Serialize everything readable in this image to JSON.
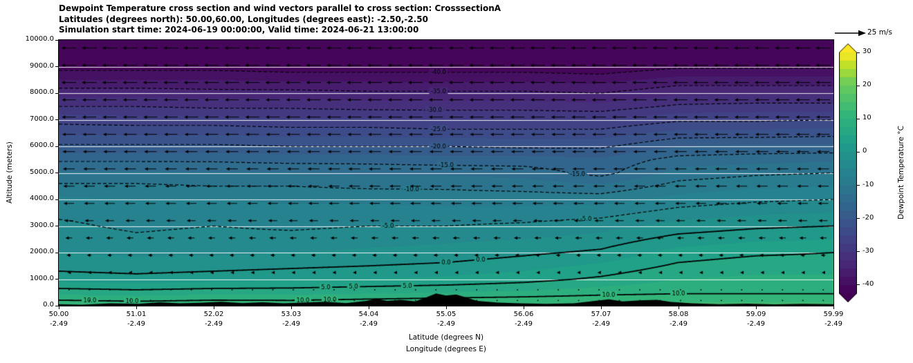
{
  "header": {
    "title_line1": "Dewpoint Temperature cross section and wind vectors parallel to cross section: CrosssectionA",
    "title_line2": "Latitudes (degrees north): 50.00,60.00, Longitudes (degrees east): -2.50,-2.50",
    "title_line3": "Simulation start time: 2024-06-19 00:00:00, Valid time: 2024-06-21 13:00:00"
  },
  "axes": {
    "y_label": "Altitude (meters)",
    "y_ticks": [
      "0.0",
      "1000.0",
      "2000.0",
      "3000.0",
      "4000.0",
      "5000.0",
      "6000.0",
      "7000.0",
      "8000.0",
      "9000.0",
      "10000.0"
    ],
    "x_label_line1": "Latitude (degrees N)",
    "x_label_line2": "Longitude (degrees E)",
    "x_ticks": [
      {
        "lat": "50.00",
        "lon": "-2.49"
      },
      {
        "lat": "51.01",
        "lon": "-2.49"
      },
      {
        "lat": "52.02",
        "lon": "-2.49"
      },
      {
        "lat": "53.03",
        "lon": "-2.49"
      },
      {
        "lat": "54.04",
        "lon": "-2.49"
      },
      {
        "lat": "55.05",
        "lon": "-2.49"
      },
      {
        "lat": "56.06",
        "lon": "-2.49"
      },
      {
        "lat": "57.07",
        "lon": "-2.49"
      },
      {
        "lat": "58.08",
        "lon": "-2.49"
      },
      {
        "lat": "59.09",
        "lon": "-2.49"
      },
      {
        "lat": "59.99",
        "lon": "-2.49"
      }
    ]
  },
  "colorbar": {
    "label": "Dewpoint Temperature °C",
    "ticks": [
      "30",
      "20",
      "10",
      "0",
      "-10",
      "-20",
      "-30",
      "-40"
    ],
    "tick_values": [
      30,
      20,
      10,
      0,
      -10,
      -20,
      -30,
      -40
    ],
    "vmin": -42.5,
    "vmax": 30,
    "band_step": 2.5,
    "viridis": [
      [
        0,
        "#440154"
      ],
      [
        0.125,
        "#482878"
      ],
      [
        0.25,
        "#3e4989"
      ],
      [
        0.375,
        "#31688e"
      ],
      [
        0.5,
        "#26828e"
      ],
      [
        0.625,
        "#1f9e89"
      ],
      [
        0.75,
        "#35b779"
      ],
      [
        0.875,
        "#6ece58"
      ],
      [
        0.9375,
        "#b5de2b"
      ],
      [
        1,
        "#fde725"
      ]
    ]
  },
  "wind_legend": {
    "label": "25 m/s",
    "speed_ms": 25
  },
  "chart_data": {
    "type": "heatmap",
    "title": "Dewpoint Temperature cross section and wind vectors parallel to cross section: CrosssectionA",
    "xlabel": "Latitude (degrees N) / Longitude (degrees E)",
    "ylabel": "Altitude (meters)",
    "units": "degC",
    "ylim": [
      0,
      10000
    ],
    "x_lats": [
      50.0,
      51.01,
      52.02,
      53.03,
      54.04,
      55.05,
      56.06,
      57.07,
      58.08,
      59.09,
      59.99
    ],
    "x_lons": [
      -2.49,
      -2.49,
      -2.49,
      -2.49,
      -2.49,
      -2.49,
      -2.49,
      -2.49,
      -2.49,
      -2.49,
      -2.49
    ],
    "altitudes": [
      0,
      250,
      500,
      1000,
      1500,
      2000,
      2500,
      3000,
      3500,
      4000,
      4500,
      5000,
      5500,
      6000,
      6500,
      7000,
      7500,
      8000,
      8500,
      9000,
      10000
    ],
    "dewpoint_columns": [
      [
        12.5,
        9.5,
        6.5,
        1.5,
        -1,
        -2.5,
        -3.5,
        -4.5,
        -5.5,
        -7,
        -9.5,
        -12,
        -15.5,
        -19.5,
        -23,
        -26,
        -30,
        -33.5,
        -37.5,
        -41,
        -46
      ],
      [
        12,
        9,
        6,
        1,
        -1.5,
        -3,
        -4.5,
        -5.5,
        -6,
        -7.5,
        -9.5,
        -12,
        -15.5,
        -19.5,
        -23,
        -26.5,
        -30,
        -33.5,
        -37.5,
        -41,
        -46
      ],
      [
        12.5,
        9.5,
        6.5,
        1.5,
        -1,
        -3,
        -4,
        -5,
        -6,
        -7.5,
        -10,
        -12.5,
        -15.5,
        -19.5,
        -23,
        -26.5,
        -30.5,
        -34,
        -37.5,
        -41,
        -46
      ],
      [
        12,
        9.5,
        6.5,
        2,
        -0.5,
        -2.5,
        -4,
        -5.5,
        -6.5,
        -8,
        -10,
        -12.5,
        -16,
        -20,
        -23.5,
        -27,
        -30.5,
        -34,
        -38,
        -41.5,
        -46.5
      ],
      [
        12.5,
        10,
        7,
        2.5,
        0,
        -2,
        -3.5,
        -5,
        -6.5,
        -8,
        -10.5,
        -13,
        -16,
        -20,
        -23.5,
        -27,
        -31,
        -34.5,
        -38,
        -41.5,
        -46.5
      ],
      [
        13,
        10.5,
        7.5,
        3,
        0.5,
        -1.5,
        -3,
        -5,
        -6.5,
        -8.5,
        -10.5,
        -13,
        -16.5,
        -20,
        -24,
        -27.5,
        -31,
        -34.5,
        -38,
        -41.5,
        -46.5
      ],
      [
        13,
        11,
        8,
        4,
        1.5,
        -0.5,
        -2.5,
        -4.5,
        -6.5,
        -8.5,
        -11,
        -13.5,
        -16.5,
        -20.5,
        -24,
        -27.5,
        -31,
        -34.5,
        -38,
        -41.5,
        -46.5
      ],
      [
        13,
        11.5,
        9,
        5.5,
        3,
        0.5,
        -1.5,
        -3.5,
        -6,
        -8.5,
        -12,
        -16,
        -17,
        -20.5,
        -24,
        -27.5,
        -31.5,
        -35,
        -38.5,
        -42,
        -47
      ],
      [
        13,
        12,
        9.5,
        7.5,
        5.5,
        3.5,
        1,
        -1.5,
        -4,
        -6.5,
        -9,
        -11.5,
        -14,
        -17.5,
        -21.5,
        -25.5,
        -29.5,
        -33,
        -36.5,
        -40.5,
        -46
      ],
      [
        13,
        12,
        9.5,
        8,
        6.5,
        4.5,
        2,
        -0.5,
        -3,
        -5.5,
        -8,
        -10.5,
        -13.5,
        -17,
        -21.5,
        -25.5,
        -29,
        -33,
        -36.5,
        -40.5,
        -46
      ],
      [
        13,
        12,
        9.5,
        8,
        6.5,
        5,
        2.5,
        0,
        -2.5,
        -5,
        -7.5,
        -10,
        -13,
        -17,
        -21,
        -25,
        -29,
        -33,
        -36.5,
        -40.5,
        -46
      ]
    ],
    "contour_levels": [
      -40,
      -35,
      -30,
      -25,
      -20,
      -15,
      -10,
      -5,
      0,
      5,
      10
    ],
    "contour_label_positions": {
      "-40": [
        0.49
      ],
      "-35": [
        0.49
      ],
      "-30": [
        0.485
      ],
      "-25": [
        0.49
      ],
      "-20": [
        0.49
      ],
      "-15": [
        0.5,
        0.67
      ],
      "-10": [
        0.455
      ],
      "-5": [
        0.425,
        0.68
      ],
      "0": [
        0.5,
        0.545
      ],
      "5": [
        0.345,
        0.38,
        0.45
      ],
      "10": [
        0.04,
        0.095,
        0.315,
        0.35,
        0.71,
        0.8
      ]
    },
    "terrain_m": [
      [
        0,
        60
      ],
      [
        0.03,
        40
      ],
      [
        0.067,
        90
      ],
      [
        0.103,
        70
      ],
      [
        0.13,
        130
      ],
      [
        0.156,
        90
      ],
      [
        0.183,
        110
      ],
      [
        0.21,
        150
      ],
      [
        0.237,
        100
      ],
      [
        0.263,
        130
      ],
      [
        0.29,
        90
      ],
      [
        0.317,
        120
      ],
      [
        0.344,
        150
      ],
      [
        0.371,
        100
      ],
      [
        0.397,
        180
      ],
      [
        0.41,
        260
      ],
      [
        0.424,
        180
      ],
      [
        0.442,
        220
      ],
      [
        0.46,
        160
      ],
      [
        0.473,
        300
      ],
      [
        0.487,
        460
      ],
      [
        0.5,
        380
      ],
      [
        0.513,
        420
      ],
      [
        0.527,
        300
      ],
      [
        0.54,
        180
      ],
      [
        0.567,
        120
      ],
      [
        0.594,
        90
      ],
      [
        0.629,
        70
      ],
      [
        0.665,
        90
      ],
      [
        0.692,
        180
      ],
      [
        0.71,
        240
      ],
      [
        0.728,
        160
      ],
      [
        0.75,
        200
      ],
      [
        0.772,
        220
      ],
      [
        0.79,
        140
      ],
      [
        0.817,
        90
      ],
      [
        0.853,
        60
      ],
      [
        0.888,
        80
      ],
      [
        0.924,
        50
      ],
      [
        0.96,
        70
      ],
      [
        1,
        60
      ]
    ],
    "wind": {
      "units": "m/s",
      "direction": "arrows point left (negative u, parallel to cross section)",
      "row_altitudes_m": [
        9700,
        9050,
        8400,
        7750,
        7100,
        6450,
        5800,
        5150,
        4500,
        3850,
        3200,
        2550,
        1900,
        1250,
        600,
        200
      ],
      "u_ms": [
        -20,
        -20,
        -20,
        -19,
        -19,
        -18,
        -17,
        -16,
        -15,
        -14,
        -12,
        -9,
        -6,
        -3.5,
        -2,
        -1
      ],
      "columns": 38,
      "reference_speed_ms": 25
    }
  }
}
